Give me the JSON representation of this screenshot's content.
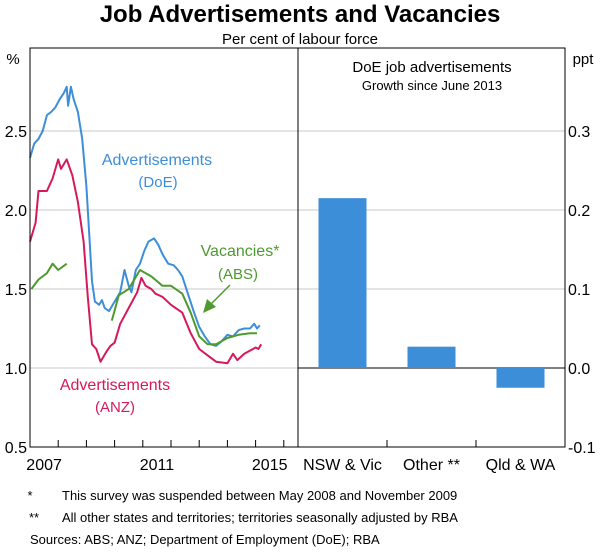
{
  "title": "Job Advertisements and Vacancies",
  "subtitle": "Per cent of labour force",
  "colors": {
    "doe": "#3d8ed8",
    "anz": "#d6185c",
    "abs": "#4e9a2e",
    "bar": "#3d8ed8",
    "grid": "#c8c8c8"
  },
  "chart_data": [
    {
      "type": "line",
      "ylabel": "%",
      "ylim": [
        0.5,
        2.9
      ],
      "yticks": [
        "0.5",
        "1.0",
        "1.5",
        "2.0",
        "2.5"
      ],
      "xlim": [
        2007,
        2016.5
      ],
      "xtick_labels": [
        "2007",
        "2011",
        "2015"
      ],
      "series": [
        {
          "name": "Advertisements",
          "sub": "(DoE)",
          "key": "doe",
          "segments": [
            [
              [
                2007.0,
                2.33
              ],
              [
                2007.15,
                2.42
              ],
              [
                2007.3,
                2.45
              ],
              [
                2007.45,
                2.5
              ],
              [
                2007.6,
                2.6
              ],
              [
                2007.75,
                2.62
              ],
              [
                2007.9,
                2.65
              ],
              [
                2008.05,
                2.7
              ],
              [
                2008.2,
                2.74
              ],
              [
                2008.3,
                2.78
              ],
              [
                2008.35,
                2.66
              ],
              [
                2008.45,
                2.78
              ],
              [
                2008.55,
                2.7
              ],
              [
                2008.7,
                2.62
              ],
              [
                2008.85,
                2.45
              ],
              [
                2009.0,
                2.15
              ],
              [
                2009.1,
                1.85
              ],
              [
                2009.2,
                1.55
              ],
              [
                2009.3,
                1.42
              ],
              [
                2009.45,
                1.4
              ],
              [
                2009.55,
                1.43
              ],
              [
                2009.65,
                1.38
              ],
              [
                2009.8,
                1.36
              ],
              [
                2010.0,
                1.42
              ],
              [
                2010.2,
                1.48
              ],
              [
                2010.35,
                1.62
              ],
              [
                2010.5,
                1.52
              ],
              [
                2010.6,
                1.48
              ],
              [
                2010.75,
                1.62
              ],
              [
                2010.9,
                1.66
              ],
              [
                2011.05,
                1.74
              ],
              [
                2011.2,
                1.8
              ],
              [
                2011.4,
                1.82
              ],
              [
                2011.55,
                1.78
              ],
              [
                2011.7,
                1.72
              ],
              [
                2011.9,
                1.66
              ],
              [
                2012.1,
                1.65
              ],
              [
                2012.25,
                1.62
              ],
              [
                2012.4,
                1.58
              ],
              [
                2012.6,
                1.47
              ],
              [
                2012.8,
                1.36
              ],
              [
                2013.0,
                1.26
              ],
              [
                2013.2,
                1.2
              ],
              [
                2013.4,
                1.15
              ],
              [
                2013.6,
                1.14
              ],
              [
                2013.8,
                1.17
              ],
              [
                2014.0,
                1.21
              ],
              [
                2014.2,
                1.2
              ],
              [
                2014.4,
                1.24
              ],
              [
                2014.6,
                1.25
              ],
              [
                2014.8,
                1.25
              ],
              [
                2014.95,
                1.28
              ],
              [
                2015.05,
                1.25
              ],
              [
                2015.15,
                1.27
              ]
            ]
          ]
        },
        {
          "name": "Advertisements",
          "sub": "(ANZ)",
          "key": "anz",
          "segments": [
            [
              [
                2007.0,
                1.8
              ],
              [
                2007.2,
                1.92
              ],
              [
                2007.3,
                2.12
              ],
              [
                2007.6,
                2.12
              ],
              [
                2007.8,
                2.2
              ],
              [
                2008.0,
                2.32
              ],
              [
                2008.1,
                2.26
              ],
              [
                2008.3,
                2.32
              ],
              [
                2008.5,
                2.22
              ],
              [
                2008.7,
                2.05
              ],
              [
                2008.9,
                1.8
              ],
              [
                2009.05,
                1.45
              ],
              [
                2009.2,
                1.15
              ],
              [
                2009.35,
                1.12
              ],
              [
                2009.5,
                1.04
              ],
              [
                2009.7,
                1.1
              ],
              [
                2009.85,
                1.14
              ],
              [
                2010.0,
                1.16
              ],
              [
                2010.2,
                1.28
              ],
              [
                2010.5,
                1.38
              ],
              [
                2010.8,
                1.48
              ],
              [
                2010.95,
                1.57
              ],
              [
                2011.1,
                1.52
              ],
              [
                2011.3,
                1.5
              ],
              [
                2011.45,
                1.47
              ],
              [
                2011.7,
                1.45
              ],
              [
                2012.0,
                1.4
              ],
              [
                2012.4,
                1.35
              ],
              [
                2012.7,
                1.22
              ],
              [
                2013.0,
                1.12
              ],
              [
                2013.3,
                1.08
              ],
              [
                2013.6,
                1.04
              ],
              [
                2014.0,
                1.03
              ],
              [
                2014.2,
                1.09
              ],
              [
                2014.35,
                1.05
              ],
              [
                2014.6,
                1.09
              ],
              [
                2015.0,
                1.13
              ],
              [
                2015.1,
                1.12
              ],
              [
                2015.2,
                1.15
              ]
            ]
          ]
        },
        {
          "name": "Vacancies*",
          "sub": "(ABS)",
          "key": "abs",
          "segments": [
            [
              [
                2007.05,
                1.5
              ],
              [
                2007.3,
                1.56
              ],
              [
                2007.6,
                1.6
              ],
              [
                2007.8,
                1.66
              ],
              [
                2008.0,
                1.62
              ],
              [
                2008.3,
                1.66
              ]
            ],
            [
              [
                2009.9,
                1.3
              ],
              [
                2010.15,
                1.46
              ],
              [
                2010.5,
                1.5
              ],
              [
                2010.9,
                1.62
              ],
              [
                2011.3,
                1.58
              ],
              [
                2011.7,
                1.52
              ],
              [
                2012.0,
                1.52
              ],
              [
                2012.4,
                1.47
              ],
              [
                2012.7,
                1.35
              ],
              [
                2013.0,
                1.2
              ],
              [
                2013.3,
                1.15
              ],
              [
                2013.6,
                1.15
              ],
              [
                2014.0,
                1.19
              ],
              [
                2014.4,
                1.21
              ],
              [
                2014.8,
                1.22
              ],
              [
                2015.05,
                1.22
              ]
            ]
          ]
        }
      ]
    },
    {
      "type": "bar",
      "title": "DoE job advertisements",
      "subtitle": "Growth since June 2013",
      "ylabel": "ppt",
      "ylim": [
        -0.1,
        0.4
      ],
      "yticks": [
        "-0.1",
        "0.0",
        "0.1",
        "0.2",
        "0.3"
      ],
      "categories": [
        "NSW  & Vic",
        "Other **",
        "Qld  & WA"
      ],
      "values": [
        0.215,
        0.027,
        -0.025
      ]
    }
  ],
  "notes": [
    {
      "mark": "*",
      "text": "This survey was suspended between May 2008 and November 2009"
    },
    {
      "mark": "**",
      "text": "All other states and territories; territories seasonally adjusted by RBA"
    }
  ],
  "sources": "Sources:  ABS; ANZ; Department of Employment (DoE); RBA"
}
